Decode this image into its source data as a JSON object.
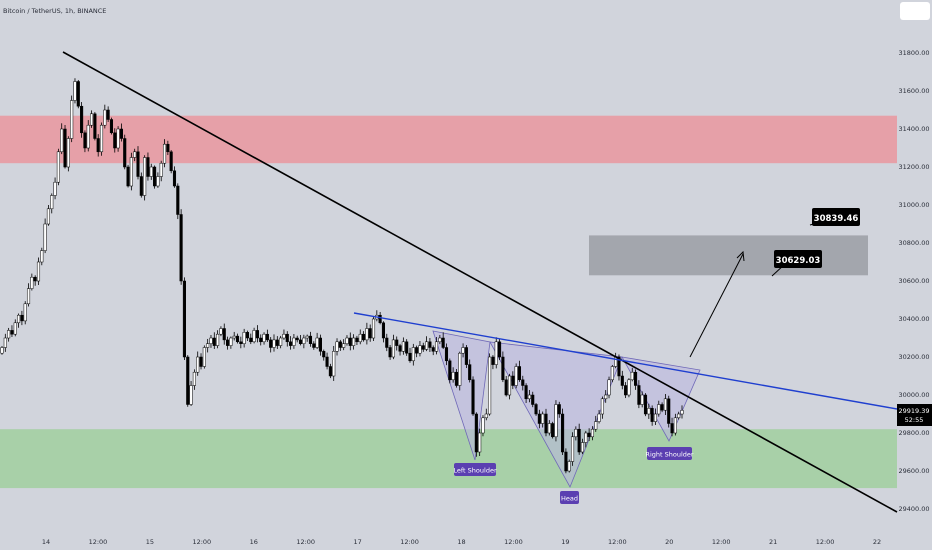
{
  "header": {
    "title": "Bitcoin / TetherUS, 1h, BINANCE"
  },
  "price_badge": {
    "price": "29919.39",
    "countdown": "52:55"
  },
  "colors": {
    "background": "#d1d4dc",
    "bull": "#ffffff",
    "bear": "#000000",
    "resistance_zone": "#e6a0a8",
    "support_zone": "#a8d0a8",
    "target_zone": "#a3a6ad",
    "trend_line": "#000000",
    "neckline": "#1f3fcf",
    "pattern_fill": "#b9b4e0",
    "pattern_label": "#5b3fb1"
  },
  "chart_data": {
    "type": "candlestick",
    "title": "Bitcoin / TetherUS, 1h, BINANCE",
    "y_axis": {
      "min": 29400,
      "max": 31800,
      "ticks": [
        "31800.00",
        "31600.00",
        "31400.00",
        "31200.00",
        "31000.00",
        "30800.00",
        "30600.00",
        "30400.00",
        "30200.00",
        "30000.00",
        "29800.00",
        "29600.00",
        "29400.00"
      ]
    },
    "x_axis": {
      "ticks": [
        "14",
        "12:00",
        "15",
        "12:00",
        "16",
        "12:00",
        "17",
        "12:00",
        "18",
        "12:00",
        "19",
        "12:00",
        "20",
        "12:00",
        "21",
        "12:00",
        "22"
      ]
    },
    "zones": {
      "resistance": [
        31220,
        31470
      ],
      "support": [
        29510,
        29820
      ],
      "target": [
        30630,
        30840
      ]
    },
    "annotations": {
      "target_upper": "30839.46",
      "target_lower": "30629.03",
      "left_shoulder": "Left Shoulder",
      "head": "Head",
      "right_shoulder": "Right Shoulder"
    },
    "close_series": [
      30250,
      30300,
      30340,
      30320,
      30380,
      30420,
      30390,
      30480,
      30560,
      30620,
      30600,
      30700,
      30760,
      30900,
      30980,
      31050,
      31120,
      31280,
      31400,
      31200,
      31350,
      31550,
      31650,
      31520,
      31380,
      31300,
      31420,
      31480,
      31350,
      31280,
      31420,
      31500,
      31450,
      31380,
      31300,
      31400,
      31350,
      31200,
      31100,
      31250,
      31280,
      31150,
      31050,
      31250,
      31150,
      31200,
      31100,
      31150,
      31220,
      31320,
      31280,
      31180,
      31100,
      30950,
      30600,
      30200,
      29950,
      30050,
      30120,
      30200,
      30150,
      30250,
      30270,
      30300,
      30260,
      30320,
      30350,
      30290,
      30260,
      30300,
      30310,
      30280,
      30270,
      30330,
      30300,
      30280,
      30340,
      30300,
      30280,
      30320,
      30290,
      30250,
      30290,
      30260,
      30300,
      30320,
      30280,
      30260,
      30300,
      30290,
      30270,
      30300,
      30310,
      30270,
      30250,
      30300,
      30230,
      30200,
      30150,
      30100,
      30230,
      30280,
      30250,
      30270,
      30300,
      30260,
      30300,
      30280,
      30320,
      30290,
      30350,
      30300,
      30400,
      30420,
      30380,
      30300,
      30250,
      30200,
      30290,
      30260,
      30230,
      30280,
      30220,
      30180,
      30250,
      30220,
      30260,
      30240,
      30280,
      30250,
      30230,
      30280,
      30300,
      30250,
      30180,
      30080,
      30120,
      30050,
      30220,
      30250,
      30160,
      30080,
      29900,
      29700,
      29800,
      29880,
      29900,
      30200,
      30160,
      30280,
      30200,
      30080,
      30000,
      30100,
      30050,
      30150,
      30080,
      30050,
      29980,
      30000,
      29950,
      29900,
      29850,
      29900,
      29800,
      29850,
      29780,
      29950,
      29900,
      29700,
      29600,
      29650,
      29780,
      29820,
      29700,
      29750,
      29800,
      29780,
      29820,
      29860,
      29900,
      29980,
      30000,
      30080,
      30150,
      30200,
      30100,
      30050,
      30000,
      30080,
      30120,
      30050,
      29950,
      30000,
      29900,
      29930,
      29860,
      29900,
      29950,
      29920,
      29980,
      29850,
      29800,
      29880,
      29900,
      29919.39
    ]
  }
}
